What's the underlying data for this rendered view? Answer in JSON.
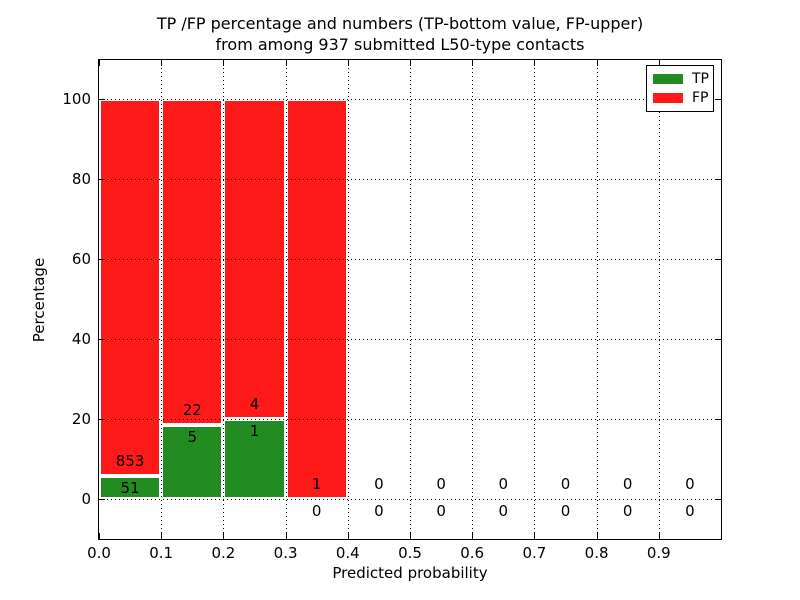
{
  "figure": {
    "background": "#ffffff"
  },
  "title": {
    "line1": "TP /FP percentage and numbers (TP-bottom value, FP-upper)",
    "line2": "from among 937 submitted L50-type contacts"
  },
  "axes": {
    "xlabel": "Predicted probability",
    "ylabel": "Percentage"
  },
  "legend": {
    "position": "upper right",
    "items": [
      {
        "label": "TP",
        "color": "#228b22"
      },
      {
        "label": "FP",
        "color": "#ff1a1a"
      }
    ]
  },
  "chart_data": {
    "type": "bar",
    "stacked": true,
    "title": "TP /FP percentage and numbers (TP-bottom value, FP-upper) from among 937 submitted L50-type contacts",
    "xlabel": "Predicted probability",
    "ylabel": "Percentage",
    "total_submitted_contacts": 937,
    "bin_width": 0.1,
    "bin_starts": [
      0.0,
      0.1,
      0.2,
      0.3,
      0.4,
      0.5,
      0.6,
      0.7,
      0.8,
      0.9
    ],
    "series": [
      {
        "name": "TP",
        "color": "#228b22",
        "counts": [
          51,
          5,
          1,
          0,
          0,
          0,
          0,
          0,
          0,
          0
        ],
        "percents": [
          5.64,
          18.52,
          20.0,
          0,
          0,
          0,
          0,
          0,
          0,
          0
        ]
      },
      {
        "name": "FP",
        "color": "#ff1a1a",
        "counts": [
          853,
          22,
          4,
          1,
          0,
          0,
          0,
          0,
          0,
          0
        ],
        "percents": [
          94.36,
          81.48,
          80.0,
          100.0,
          0,
          0,
          0,
          0,
          0,
          0
        ]
      }
    ],
    "xticks": [
      "0.0",
      "0.1",
      "0.2",
      "0.3",
      "0.4",
      "0.5",
      "0.6",
      "0.7",
      "0.8",
      "0.9"
    ],
    "yticks": [
      "0",
      "20",
      "40",
      "60",
      "80",
      "100"
    ],
    "xlim": [
      0.0,
      1.0
    ],
    "ylim": [
      -10,
      110
    ],
    "grid": {
      "style": "dotted",
      "color": "#000000",
      "axisbelow": false
    },
    "legend_position": "upper right",
    "bar_edge_color": "#ffffff"
  }
}
